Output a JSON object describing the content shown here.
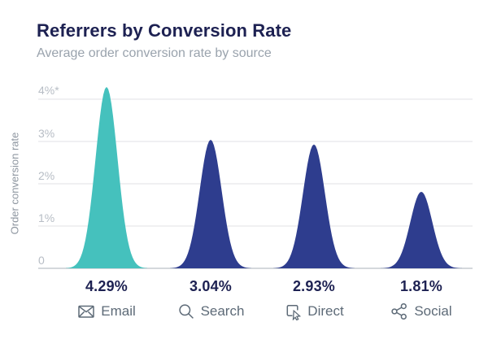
{
  "header": {
    "title": "Referrers by Conversion Rate",
    "subtitle": "Average order conversion rate by source"
  },
  "chart_data": {
    "type": "area",
    "subtype": "gaussian-peaks",
    "title": "Referrers by Conversion Rate",
    "subtitle": "Average order conversion rate by source",
    "xlabel": "",
    "ylabel": "Order conversion rate",
    "ylim": [
      0,
      4.5
    ],
    "grid": true,
    "legend": false,
    "categories": [
      "Email",
      "Search",
      "Direct",
      "Social"
    ],
    "values": [
      4.29,
      3.04,
      2.93,
      1.81
    ],
    "yticks": [
      {
        "value": 0,
        "label": "0"
      },
      {
        "value": 1,
        "label": "1%"
      },
      {
        "value": 2,
        "label": "2%"
      },
      {
        "value": 3,
        "label": "3%"
      },
      {
        "value": 4,
        "label": "4%*"
      }
    ],
    "points": [
      {
        "label": "Email",
        "value": 4.29,
        "value_label": "4.29%",
        "icon": "envelope-icon",
        "color": "#45c1bd",
        "highlight": true
      },
      {
        "label": "Search",
        "value": 3.04,
        "value_label": "3.04%",
        "icon": "magnifier-icon",
        "color": "#2e3d8e",
        "highlight": false
      },
      {
        "label": "Direct",
        "value": 2.93,
        "value_label": "2.93%",
        "icon": "cursor-click-icon",
        "color": "#2e3d8e",
        "highlight": false
      },
      {
        "label": "Social",
        "value": 1.81,
        "value_label": "1.81%",
        "icon": "share-nodes-icon",
        "color": "#2e3d8e",
        "highlight": false
      }
    ],
    "colors": {
      "highlight": "#45c1bd",
      "series": "#2e3d8e",
      "title_text": "#1d2152",
      "value_text": "#1d2152",
      "subtitle_text": "#9aa3ad",
      "tick_text": "#b7bdc5",
      "axis_title_text": "#8e96a0",
      "category_text": "#5d6a77",
      "gridline": "#e6e8eb",
      "axis_line": "#c6cbd1"
    }
  }
}
